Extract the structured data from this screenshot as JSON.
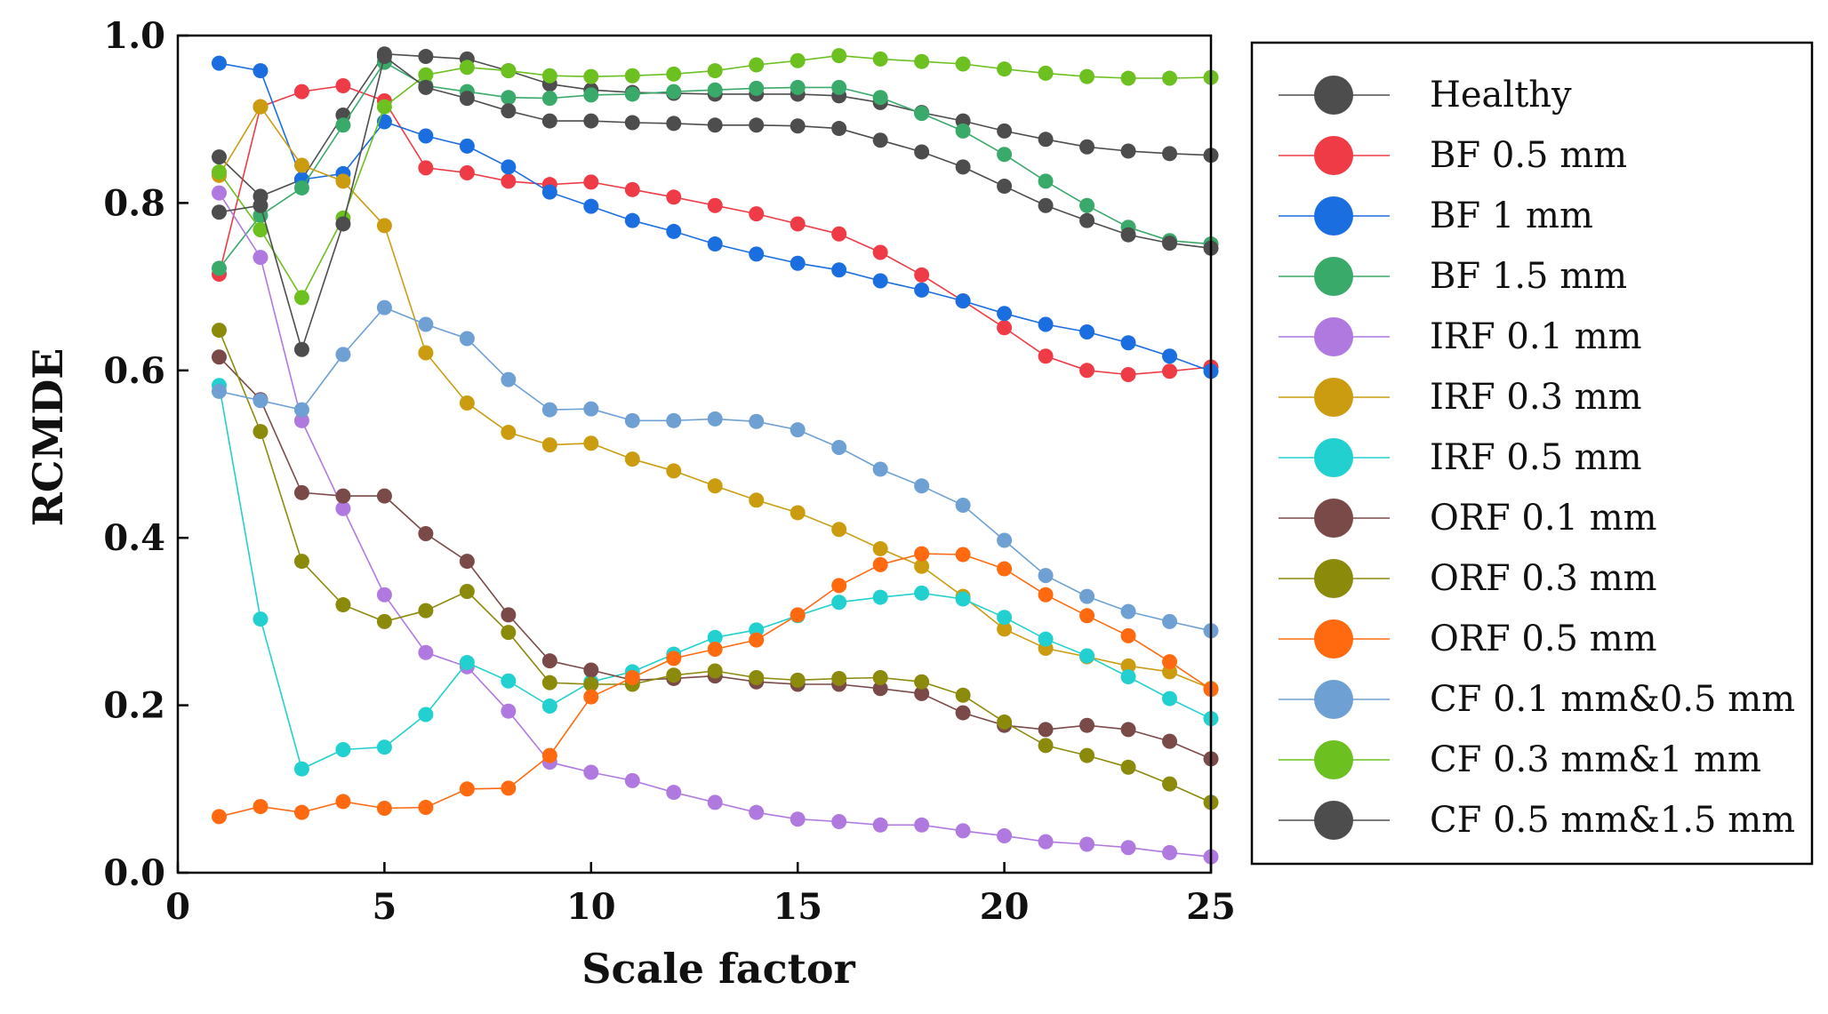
{
  "chart_data": {
    "type": "line",
    "title": "",
    "xlabel": "Scale factor",
    "ylabel": "RCMDE",
    "xlim": [
      0,
      25
    ],
    "ylim": [
      0.0,
      1.0
    ],
    "xticks": [
      0,
      5,
      10,
      15,
      20,
      25
    ],
    "xtick_labels": [
      "0",
      "5",
      "10",
      "15",
      "20",
      "25"
    ],
    "yticks": [
      0.0,
      0.2,
      0.4,
      0.6,
      0.8,
      1.0
    ],
    "ytick_labels": [
      "0.0",
      "0.2",
      "0.4",
      "0.6",
      "0.8",
      "1.0"
    ],
    "grid": false,
    "legend_position": "right",
    "x": [
      1,
      2,
      3,
      4,
      5,
      6,
      7,
      8,
      9,
      10,
      11,
      12,
      13,
      14,
      15,
      16,
      17,
      18,
      19,
      20,
      21,
      22,
      23,
      24,
      25
    ],
    "series": [
      {
        "name": "Healthy",
        "color": "#4d4d4d",
        "values": [
          0.855,
          0.808,
          0.828,
          0.905,
          0.978,
          0.975,
          0.972,
          0.958,
          0.942,
          0.935,
          0.932,
          0.931,
          0.93,
          0.93,
          0.93,
          0.928,
          0.92,
          0.908,
          0.898,
          0.886,
          0.876,
          0.867,
          0.862,
          0.859,
          0.857
        ]
      },
      {
        "name": "BF 0.5 mm",
        "color": "#ee3b45",
        "values": [
          0.715,
          0.915,
          0.933,
          0.94,
          0.922,
          0.842,
          0.836,
          0.826,
          0.822,
          0.825,
          0.816,
          0.807,
          0.797,
          0.787,
          0.775,
          0.763,
          0.741,
          0.714,
          0.683,
          0.651,
          0.617,
          0.6,
          0.595,
          0.599,
          0.604
        ]
      },
      {
        "name": "BF 1 mm",
        "color": "#1a6ee0",
        "values": [
          0.967,
          0.958,
          0.828,
          0.835,
          0.897,
          0.88,
          0.868,
          0.843,
          0.813,
          0.796,
          0.779,
          0.766,
          0.751,
          0.739,
          0.728,
          0.72,
          0.707,
          0.696,
          0.683,
          0.668,
          0.655,
          0.646,
          0.633,
          0.617,
          0.599
        ]
      },
      {
        "name": "BF 1.5 mm",
        "color": "#3aaa6a",
        "values": [
          0.722,
          0.785,
          0.818,
          0.893,
          0.968,
          0.94,
          0.933,
          0.926,
          0.925,
          0.929,
          0.93,
          0.933,
          0.935,
          0.937,
          0.938,
          0.938,
          0.926,
          0.907,
          0.886,
          0.858,
          0.826,
          0.797,
          0.771,
          0.755,
          0.751
        ]
      },
      {
        "name": "IRF 0.1 mm",
        "color": "#b079e0",
        "values": [
          0.812,
          0.735,
          0.54,
          0.435,
          0.332,
          0.263,
          0.246,
          0.193,
          0.132,
          0.12,
          0.11,
          0.096,
          0.084,
          0.072,
          0.064,
          0.061,
          0.057,
          0.057,
          0.05,
          0.044,
          0.037,
          0.034,
          0.03,
          0.024,
          0.019
        ]
      },
      {
        "name": "IRF 0.3 mm",
        "color": "#cc9c10",
        "values": [
          0.833,
          0.915,
          0.845,
          0.826,
          0.773,
          0.621,
          0.561,
          0.526,
          0.511,
          0.513,
          0.494,
          0.48,
          0.462,
          0.445,
          0.43,
          0.41,
          0.387,
          0.366,
          0.33,
          0.291,
          0.268,
          0.258,
          0.247,
          0.24,
          0.22
        ]
      },
      {
        "name": "IRF 0.5 mm",
        "color": "#22d0d0",
        "values": [
          0.582,
          0.303,
          0.124,
          0.147,
          0.15,
          0.189,
          0.251,
          0.229,
          0.199,
          0.228,
          0.24,
          0.261,
          0.281,
          0.29,
          0.307,
          0.323,
          0.329,
          0.334,
          0.327,
          0.305,
          0.279,
          0.259,
          0.234,
          0.208,
          0.184
        ]
      },
      {
        "name": "ORF 0.1 mm",
        "color": "#7a4a48",
        "values": [
          0.616,
          0.565,
          0.454,
          0.45,
          0.45,
          0.405,
          0.372,
          0.308,
          0.253,
          0.242,
          0.23,
          0.232,
          0.235,
          0.228,
          0.225,
          0.225,
          0.22,
          0.214,
          0.191,
          0.176,
          0.171,
          0.176,
          0.171,
          0.157,
          0.136
        ]
      },
      {
        "name": "ORF 0.3 mm",
        "color": "#8c8a0a",
        "values": [
          0.648,
          0.527,
          0.372,
          0.32,
          0.3,
          0.313,
          0.336,
          0.287,
          0.227,
          0.225,
          0.225,
          0.236,
          0.241,
          0.233,
          0.23,
          0.232,
          0.233,
          0.228,
          0.212,
          0.18,
          0.152,
          0.14,
          0.126,
          0.106,
          0.084
        ]
      },
      {
        "name": "ORF 0.5 mm",
        "color": "#ff6a10",
        "values": [
          0.067,
          0.079,
          0.072,
          0.085,
          0.077,
          0.078,
          0.1,
          0.101,
          0.14,
          0.21,
          0.233,
          0.256,
          0.267,
          0.278,
          0.308,
          0.343,
          0.368,
          0.381,
          0.38,
          0.363,
          0.332,
          0.307,
          0.283,
          0.252,
          0.219
        ]
      },
      {
        "name": "CF 0.1 mm&0.5 mm",
        "color": "#6ea0d4",
        "values": [
          0.575,
          0.564,
          0.553,
          0.619,
          0.675,
          0.655,
          0.638,
          0.589,
          0.553,
          0.554,
          0.54,
          0.54,
          0.542,
          0.539,
          0.529,
          0.508,
          0.482,
          0.462,
          0.439,
          0.397,
          0.355,
          0.33,
          0.312,
          0.3,
          0.289
        ]
      },
      {
        "name": "CF 0.3 mm&1 mm",
        "color": "#6cc020",
        "values": [
          0.837,
          0.768,
          0.687,
          0.782,
          0.915,
          0.953,
          0.962,
          0.958,
          0.952,
          0.951,
          0.952,
          0.954,
          0.958,
          0.965,
          0.97,
          0.976,
          0.972,
          0.969,
          0.966,
          0.96,
          0.955,
          0.951,
          0.949,
          0.949,
          0.95
        ]
      },
      {
        "name": "CF 0.5 mm&1.5 mm",
        "color": "#4d4d4d",
        "values": [
          0.789,
          0.797,
          0.625,
          0.775,
          0.975,
          0.938,
          0.925,
          0.91,
          0.898,
          0.898,
          0.896,
          0.895,
          0.893,
          0.893,
          0.892,
          0.889,
          0.875,
          0.861,
          0.843,
          0.82,
          0.797,
          0.779,
          0.762,
          0.752,
          0.746
        ]
      }
    ]
  }
}
